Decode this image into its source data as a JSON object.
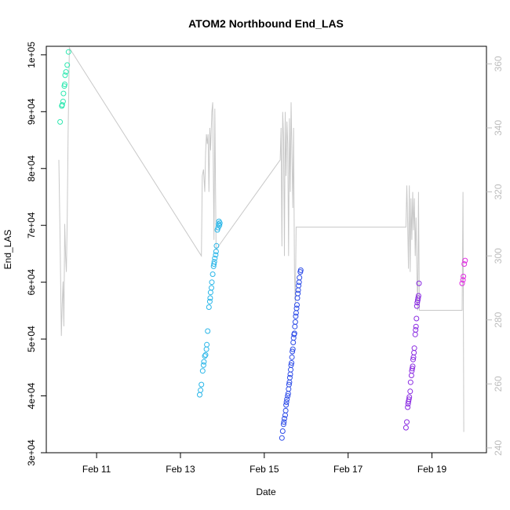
{
  "chart_data": {
    "type": "scatter",
    "title": "ATOM2 Northbound End_LAS",
    "xlabel": "Date",
    "ylabel": "End_LAS",
    "x_tick_labels": [
      "Feb 11",
      "Feb 13",
      "Feb 15",
      "Feb 17",
      "Feb 19"
    ],
    "x_tick_values": [
      11,
      13,
      15,
      17,
      19
    ],
    "xlim": [
      9.8,
      20.3
    ],
    "y_tick_labels": [
      "3e+04",
      "4e+04",
      "5e+04",
      "6e+04",
      "7e+04",
      "8e+04",
      "9e+04",
      "1e+05"
    ],
    "y_tick_values": [
      30000,
      40000,
      50000,
      60000,
      70000,
      80000,
      90000,
      100000
    ],
    "ylim": [
      30000,
      101500
    ],
    "y2_tick_labels": [
      "240",
      "260",
      "280",
      "300",
      "320",
      "340",
      "360"
    ],
    "y2_tick_values": [
      240,
      260,
      280,
      300,
      320,
      340,
      360
    ],
    "y2lim": [
      238.5,
      365.5
    ],
    "grid": false,
    "colors": {
      "axis": "#000000",
      "secondary_axis": "#bdbdbd",
      "secondary_line": "#c8c8c8",
      "series_1": "#2ee8b0",
      "series_2": "#29b6e8",
      "series_3": "#2d4ce8",
      "series_4": "#8a2be2",
      "series_5": "#e02be2"
    },
    "series": [
      {
        "color": "#2ee8b0",
        "points": [
          [
            10.13,
            88200
          ],
          [
            10.17,
            91000
          ],
          [
            10.18,
            91200
          ],
          [
            10.2,
            91800
          ],
          [
            10.21,
            93200
          ],
          [
            10.23,
            94500
          ],
          [
            10.24,
            94800
          ],
          [
            10.25,
            96400
          ],
          [
            10.27,
            97000
          ],
          [
            10.3,
            98200
          ],
          [
            10.33,
            100500
          ]
        ]
      },
      {
        "color": "#29b6e8",
        "points": [
          [
            13.46,
            40200
          ],
          [
            13.48,
            41000
          ],
          [
            13.5,
            42000
          ],
          [
            13.53,
            44400
          ],
          [
            13.55,
            45400
          ],
          [
            13.56,
            46000
          ],
          [
            13.58,
            47000
          ],
          [
            13.6,
            47200
          ],
          [
            13.62,
            48200
          ],
          [
            13.63,
            49000
          ],
          [
            13.65,
            51400
          ],
          [
            13.68,
            55600
          ],
          [
            13.7,
            56600
          ],
          [
            13.71,
            57200
          ],
          [
            13.72,
            58200
          ],
          [
            13.74,
            59000
          ],
          [
            13.75,
            60000
          ],
          [
            13.77,
            61400
          ],
          [
            13.79,
            62800
          ],
          [
            13.8,
            63200
          ],
          [
            13.81,
            63600
          ],
          [
            13.82,
            64200
          ],
          [
            13.84,
            64800
          ],
          [
            13.85,
            65400
          ],
          [
            13.86,
            66400
          ],
          [
            13.88,
            69200
          ],
          [
            13.9,
            69600
          ],
          [
            13.91,
            70200
          ],
          [
            13.92,
            70700
          ],
          [
            13.93,
            70000
          ],
          [
            13.94,
            70400
          ]
        ]
      },
      {
        "color": "#2d4ce8",
        "points": [
          [
            15.42,
            32600
          ],
          [
            15.44,
            33800
          ],
          [
            15.46,
            35000
          ],
          [
            15.47,
            35400
          ],
          [
            15.48,
            36000
          ],
          [
            15.5,
            36600
          ],
          [
            15.51,
            37400
          ],
          [
            15.52,
            38400
          ],
          [
            15.53,
            38900
          ],
          [
            15.54,
            39400
          ],
          [
            15.56,
            40000
          ],
          [
            15.57,
            40400
          ],
          [
            15.58,
            41200
          ],
          [
            15.59,
            42000
          ],
          [
            15.6,
            42400
          ],
          [
            15.61,
            43200
          ],
          [
            15.62,
            43800
          ],
          [
            15.63,
            44600
          ],
          [
            15.64,
            45400
          ],
          [
            15.65,
            45800
          ],
          [
            15.66,
            46800
          ],
          [
            15.67,
            47800
          ],
          [
            15.68,
            48200
          ],
          [
            15.69,
            49400
          ],
          [
            15.7,
            50200
          ],
          [
            15.71,
            50800
          ],
          [
            15.72,
            51000
          ],
          [
            15.73,
            52200
          ],
          [
            15.74,
            53000
          ],
          [
            15.75,
            54000
          ],
          [
            15.76,
            54600
          ],
          [
            15.77,
            55400
          ],
          [
            15.78,
            56000
          ],
          [
            15.79,
            57200
          ],
          [
            15.8,
            58000
          ],
          [
            15.81,
            58600
          ],
          [
            15.82,
            59400
          ],
          [
            15.83,
            60000
          ],
          [
            15.84,
            60800
          ],
          [
            15.86,
            61800
          ],
          [
            15.87,
            62100
          ]
        ]
      },
      {
        "color": "#8a2be2",
        "points": [
          [
            18.38,
            34400
          ],
          [
            18.4,
            35400
          ],
          [
            18.42,
            38000
          ],
          [
            18.43,
            38600
          ],
          [
            18.44,
            39000
          ],
          [
            18.45,
            39400
          ],
          [
            18.46,
            39800
          ],
          [
            18.48,
            40800
          ],
          [
            18.49,
            42400
          ],
          [
            18.51,
            43600
          ],
          [
            18.52,
            44400
          ],
          [
            18.53,
            44800
          ],
          [
            18.54,
            45200
          ],
          [
            18.55,
            46400
          ],
          [
            18.56,
            46800
          ],
          [
            18.57,
            47600
          ],
          [
            18.58,
            48400
          ],
          [
            18.6,
            50800
          ],
          [
            18.61,
            51600
          ],
          [
            18.62,
            52200
          ],
          [
            18.63,
            53600
          ],
          [
            18.64,
            55800
          ],
          [
            18.65,
            56400
          ],
          [
            18.66,
            56800
          ],
          [
            18.67,
            57200
          ],
          [
            18.68,
            57600
          ],
          [
            18.69,
            59800
          ]
        ]
      },
      {
        "color": "#e02be2",
        "points": [
          [
            19.72,
            59800
          ],
          [
            19.74,
            60400
          ],
          [
            19.75,
            61000
          ],
          [
            19.77,
            63200
          ],
          [
            19.79,
            63800
          ]
        ]
      }
    ],
    "secondary_line": {
      "color": "#c8c8c8",
      "points": [
        [
          10.1,
          330
        ],
        [
          10.13,
          305
        ],
        [
          10.16,
          275
        ],
        [
          10.18,
          285
        ],
        [
          10.2,
          292
        ],
        [
          10.22,
          278
        ],
        [
          10.24,
          310
        ],
        [
          10.26,
          300
        ],
        [
          10.28,
          295
        ],
        [
          10.3,
          312
        ],
        [
          10.32,
          338
        ],
        [
          10.35,
          365
        ],
        [
          13.5,
          300
        ],
        [
          13.52,
          325
        ],
        [
          13.55,
          327
        ],
        [
          13.58,
          320
        ],
        [
          13.6,
          332
        ],
        [
          13.62,
          338
        ],
        [
          13.64,
          335
        ],
        [
          13.66,
          338
        ],
        [
          13.68,
          320
        ],
        [
          13.7,
          340
        ],
        [
          13.72,
          333
        ],
        [
          13.75,
          345
        ],
        [
          13.77,
          348
        ],
        [
          13.8,
          305
        ],
        [
          13.82,
          346
        ],
        [
          13.85,
          302
        ],
        [
          15.38,
          330
        ],
        [
          15.4,
          340
        ],
        [
          15.42,
          303
        ],
        [
          15.44,
          345
        ],
        [
          15.46,
          337
        ],
        [
          15.48,
          300
        ],
        [
          15.5,
          345
        ],
        [
          15.52,
          325
        ],
        [
          15.54,
          342
        ],
        [
          15.56,
          335
        ],
        [
          15.58,
          300
        ],
        [
          15.6,
          343
        ],
        [
          15.62,
          320
        ],
        [
          15.64,
          348
        ],
        [
          15.66,
          332
        ],
        [
          15.68,
          315
        ],
        [
          15.7,
          340
        ],
        [
          15.72,
          295
        ],
        [
          15.74,
          285
        ],
        [
          15.76,
          309
        ],
        [
          18.38,
          309
        ],
        [
          18.4,
          322
        ],
        [
          18.42,
          310
        ],
        [
          18.44,
          296
        ],
        [
          18.46,
          322
        ],
        [
          18.48,
          295
        ],
        [
          18.5,
          318
        ],
        [
          18.52,
          305
        ],
        [
          18.54,
          320
        ],
        [
          18.56,
          308
        ],
        [
          18.58,
          318
        ],
        [
          18.6,
          300
        ],
        [
          18.62,
          312
        ],
        [
          18.64,
          295
        ],
        [
          18.66,
          283
        ],
        [
          18.68,
          320
        ],
        [
          18.7,
          283
        ],
        [
          19.72,
          283
        ],
        [
          19.74,
          320
        ],
        [
          19.76,
          245
        ]
      ]
    }
  }
}
